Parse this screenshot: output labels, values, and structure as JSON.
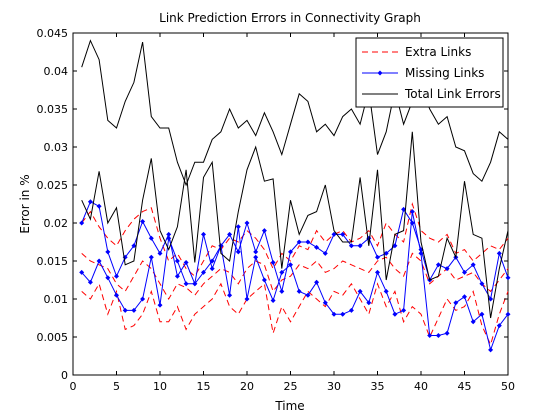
{
  "chart_data": {
    "type": "line",
    "title": "Link Prediction Errors in Connectivity Graph",
    "xlabel": "Time",
    "ylabel": "Error in %",
    "xlim": [
      0,
      50
    ],
    "ylim": [
      0,
      0.045
    ],
    "xticks": [
      0,
      5,
      10,
      15,
      20,
      25,
      30,
      35,
      40,
      45,
      50
    ],
    "xtick_labels": [
      "0",
      "5",
      "10",
      "15",
      "20",
      "25",
      "30",
      "35",
      "40",
      "45",
      "50"
    ],
    "yticks": [
      0,
      0.005,
      0.01,
      0.015,
      0.02,
      0.025,
      0.03,
      0.035,
      0.04,
      0.045
    ],
    "ytick_labels": [
      "0",
      "0.005",
      "0.01",
      "0.015",
      "0.02",
      "0.025",
      "0.03",
      "0.035",
      "0.04",
      "0.045"
    ],
    "grid": false,
    "legend_position": "top-right",
    "x": [
      1,
      2,
      3,
      4,
      5,
      6,
      7,
      8,
      9,
      10,
      11,
      12,
      13,
      14,
      15,
      16,
      17,
      18,
      19,
      20,
      21,
      22,
      23,
      24,
      25,
      26,
      27,
      28,
      29,
      30,
      31,
      32,
      33,
      34,
      35,
      36,
      37,
      38,
      39,
      40,
      41,
      42,
      43,
      44,
      45,
      46,
      47,
      48,
      49,
      50
    ],
    "series": [
      {
        "name": "Extra Links",
        "color": "#ff0000",
        "style": "dashed",
        "marker": "none",
        "envelopes": [
          [
            0.02,
            0.0215,
            0.0195,
            0.018,
            0.017,
            0.019,
            0.0205,
            0.0215,
            0.022,
            0.018,
            0.015,
            0.016,
            0.014,
            0.013,
            0.015,
            0.017,
            0.0165,
            0.018,
            0.0175,
            0.019,
            0.018,
            0.0165,
            0.014,
            0.016,
            0.015,
            0.017,
            0.0165,
            0.019,
            0.0175,
            0.0185,
            0.019,
            0.0175,
            0.018,
            0.019,
            0.017,
            0.02,
            0.0185,
            0.0175,
            0.0225,
            0.019,
            0.018,
            0.0175,
            0.0185,
            0.016,
            0.0165,
            0.015,
            0.016,
            0.017,
            0.0165,
            0.018
          ],
          [
            0.011,
            0.01,
            0.012,
            0.008,
            0.011,
            0.006,
            0.0065,
            0.008,
            0.011,
            0.007,
            0.007,
            0.009,
            0.006,
            0.008,
            0.009,
            0.01,
            0.012,
            0.009,
            0.008,
            0.01,
            0.011,
            0.012,
            0.0055,
            0.009,
            0.007,
            0.009,
            0.011,
            0.01,
            0.009,
            0.011,
            0.0105,
            0.012,
            0.01,
            0.008,
            0.012,
            0.009,
            0.011,
            0.007,
            0.009,
            0.008,
            0.005,
            0.0075,
            0.01,
            0.0085,
            0.009,
            0.011,
            0.0065,
            0.004,
            0.008,
            0.011
          ],
          [
            0.016,
            0.015,
            0.0145,
            0.014,
            0.012,
            0.011,
            0.013,
            0.015,
            0.014,
            0.012,
            0.01,
            0.012,
            0.0115,
            0.0105,
            0.012,
            0.013,
            0.014,
            0.0135,
            0.012,
            0.014,
            0.015,
            0.0145,
            0.011,
            0.0125,
            0.013,
            0.0145,
            0.014,
            0.015,
            0.0135,
            0.014,
            0.015,
            0.0145,
            0.014,
            0.0135,
            0.015,
            0.0155,
            0.014,
            0.013,
            0.016,
            0.015,
            0.012,
            0.013,
            0.014,
            0.0125,
            0.013,
            0.0135,
            0.012,
            0.011,
            0.0125,
            0.014
          ]
        ]
      },
      {
        "name": "Missing Links",
        "color": "#0000ff",
        "style": "solid",
        "marker": "diamond",
        "envelopes": [
          [
            0.02,
            0.0228,
            0.0222,
            0.0162,
            0.013,
            0.0155,
            0.017,
            0.0202,
            0.018,
            0.016,
            0.0185,
            0.013,
            0.0148,
            0.012,
            0.0185,
            0.014,
            0.017,
            0.0185,
            0.0162,
            0.02,
            0.0162,
            0.019,
            0.0148,
            0.011,
            0.0162,
            0.0175,
            0.0175,
            0.0168,
            0.016,
            0.0185,
            0.0185,
            0.017,
            0.017,
            0.018,
            0.0155,
            0.016,
            0.017,
            0.0218,
            0.02,
            0.0165,
            0.0125,
            0.0145,
            0.014,
            0.0155,
            0.0135,
            0.0145,
            0.012,
            0.01,
            0.016,
            0.0128
          ],
          [
            0.0135,
            0.0122,
            0.015,
            0.0128,
            0.0105,
            0.0085,
            0.0085,
            0.01,
            0.0155,
            0.0092,
            0.018,
            0.015,
            0.012,
            0.012,
            0.0135,
            0.015,
            0.017,
            0.0105,
            0.0195,
            0.01,
            0.0155,
            0.0125,
            0.0098,
            0.0135,
            0.0145,
            0.011,
            0.0105,
            0.0122,
            0.0095,
            0.008,
            0.008,
            0.0085,
            0.011,
            0.0095,
            0.0135,
            0.011,
            0.008,
            0.0085,
            0.0215,
            0.016,
            0.0052,
            0.0052,
            0.0055,
            0.0095,
            0.0103,
            0.007,
            0.008,
            0.0033,
            0.0065,
            0.008
          ]
        ]
      },
      {
        "name": "Total Link Errors",
        "color": "#000000",
        "style": "solid",
        "marker": "none",
        "envelopes": [
          [
            0.0405,
            0.044,
            0.0415,
            0.0335,
            0.0325,
            0.036,
            0.0385,
            0.0438,
            0.034,
            0.0325,
            0.0325,
            0.028,
            0.025,
            0.028,
            0.028,
            0.031,
            0.032,
            0.035,
            0.0325,
            0.0335,
            0.0315,
            0.0345,
            0.032,
            0.029,
            0.033,
            0.037,
            0.036,
            0.032,
            0.033,
            0.0315,
            0.034,
            0.035,
            0.033,
            0.0375,
            0.029,
            0.032,
            0.0375,
            0.033,
            0.036,
            0.038,
            0.035,
            0.033,
            0.034,
            0.03,
            0.0295,
            0.0265,
            0.0255,
            0.028,
            0.032,
            0.031
          ],
          [
            0.023,
            0.0205,
            0.0268,
            0.02,
            0.022,
            0.0145,
            0.015,
            0.023,
            0.0285,
            0.019,
            0.0165,
            0.0195,
            0.027,
            0.0148,
            0.026,
            0.028,
            0.016,
            0.015,
            0.0215,
            0.027,
            0.03,
            0.0255,
            0.0258,
            0.014,
            0.023,
            0.0185,
            0.021,
            0.0215,
            0.025,
            0.019,
            0.0175,
            0.0175,
            0.026,
            0.017,
            0.027,
            0.0125,
            0.0185,
            0.019,
            0.032,
            0.0175,
            0.0125,
            0.013,
            0.018,
            0.0155,
            0.0255,
            0.0185,
            0.018,
            0.0075,
            0.014,
            0.019
          ]
        ]
      }
    ]
  }
}
